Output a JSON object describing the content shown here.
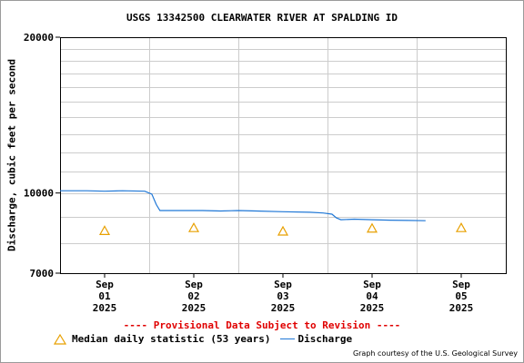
{
  "title": "USGS 13342500 CLEARWATER RIVER AT SPALDING ID",
  "ylabel": "Discharge, cubic feet per second",
  "provisional_note": "---- Provisional Data Subject to Revision ----",
  "credit": "Graph courtesy of the U.S. Geological Survey",
  "colors": {
    "discharge": "#1f77d6",
    "median": "#e8a000",
    "provisional": "#e00000",
    "grid": "#cccccc"
  },
  "chart_data": {
    "type": "line",
    "title": "USGS 13342500 CLEARWATER RIVER AT SPALDING ID",
    "xlabel": "",
    "ylabel": "Discharge, cubic feet per second",
    "y_scale": "log",
    "ylim": [
      7000,
      20000
    ],
    "ytick_labels": [
      "7000",
      "10000",
      "20000"
    ],
    "xlim": [
      0,
      4.5
    ],
    "xticks": [
      {
        "x": 0.5,
        "label": [
          "Sep",
          "01",
          "2025"
        ]
      },
      {
        "x": 1.5,
        "label": [
          "Sep",
          "02",
          "2025"
        ]
      },
      {
        "x": 2.5,
        "label": [
          "Sep",
          "03",
          "2025"
        ]
      },
      {
        "x": 3.5,
        "label": [
          "Sep",
          "04",
          "2025"
        ]
      },
      {
        "x": 4.5,
        "label": [
          "Sep",
          "05",
          "2025"
        ]
      }
    ],
    "grid": true,
    "legend_position": "bottom",
    "series": [
      {
        "name": "Discharge",
        "type": "line",
        "points": [
          [
            0.0,
            10100
          ],
          [
            0.3,
            10100
          ],
          [
            0.5,
            10080
          ],
          [
            0.7,
            10100
          ],
          [
            0.95,
            10080
          ],
          [
            1.03,
            9950
          ],
          [
            1.08,
            9500
          ],
          [
            1.12,
            9250
          ],
          [
            1.3,
            9250
          ],
          [
            1.6,
            9250
          ],
          [
            1.8,
            9230
          ],
          [
            2.0,
            9250
          ],
          [
            2.2,
            9230
          ],
          [
            2.5,
            9200
          ],
          [
            2.8,
            9180
          ],
          [
            2.95,
            9150
          ],
          [
            3.05,
            9100
          ],
          [
            3.1,
            8950
          ],
          [
            3.15,
            8880
          ],
          [
            3.3,
            8900
          ],
          [
            3.5,
            8880
          ],
          [
            3.7,
            8860
          ],
          [
            3.9,
            8850
          ],
          [
            4.1,
            8840
          ]
        ]
      },
      {
        "name": "Median daily statistic (53 years)",
        "type": "scatter",
        "marker": "triangle",
        "points": [
          [
            0.5,
            8450
          ],
          [
            1.5,
            8560
          ],
          [
            2.5,
            8430
          ],
          [
            3.5,
            8540
          ],
          [
            4.5,
            8560
          ]
        ]
      }
    ]
  }
}
